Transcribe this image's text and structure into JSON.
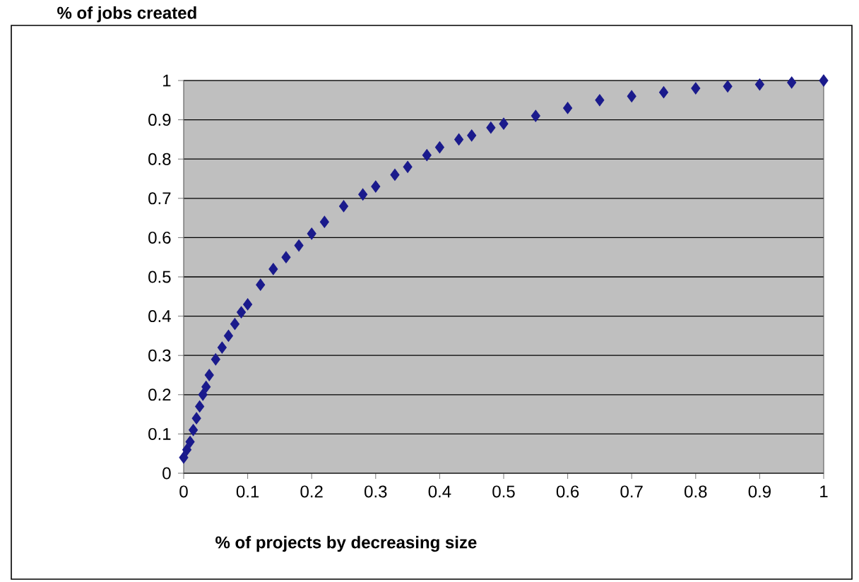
{
  "chart_data": {
    "type": "scatter",
    "title": "% of jobs created",
    "xlabel": "% of projects by decreasing size",
    "xlim": [
      0,
      1
    ],
    "ylim": [
      0,
      1
    ],
    "xticks": [
      0,
      0.1,
      0.2,
      0.3,
      0.4,
      0.5,
      0.6,
      0.7,
      0.8,
      0.9,
      1
    ],
    "yticks": [
      0,
      0.1,
      0.2,
      0.3,
      0.4,
      0.5,
      0.6,
      0.7,
      0.8,
      0.9,
      1
    ],
    "grid": "y",
    "marker": "diamond",
    "series": [
      {
        "color": "#1a1a8c",
        "x": [
          0,
          0.005,
          0.01,
          0.015,
          0.02,
          0.025,
          0.03,
          0.035,
          0.04,
          0.05,
          0.06,
          0.07,
          0.08,
          0.09,
          0.1,
          0.12,
          0.14,
          0.16,
          0.18,
          0.2,
          0.22,
          0.25,
          0.28,
          0.3,
          0.33,
          0.35,
          0.38,
          0.4,
          0.43,
          0.45,
          0.48,
          0.5,
          0.55,
          0.6,
          0.65,
          0.7,
          0.75,
          0.8,
          0.85,
          0.9,
          0.95,
          1
        ],
        "values": [
          0.04,
          0.06,
          0.08,
          0.11,
          0.14,
          0.17,
          0.2,
          0.22,
          0.25,
          0.29,
          0.32,
          0.35,
          0.38,
          0.41,
          0.43,
          0.48,
          0.52,
          0.55,
          0.58,
          0.61,
          0.64,
          0.68,
          0.71,
          0.73,
          0.76,
          0.78,
          0.81,
          0.83,
          0.85,
          0.86,
          0.88,
          0.89,
          0.91,
          0.93,
          0.95,
          0.96,
          0.97,
          0.98,
          0.985,
          0.99,
          0.995,
          1
        ]
      }
    ]
  }
}
